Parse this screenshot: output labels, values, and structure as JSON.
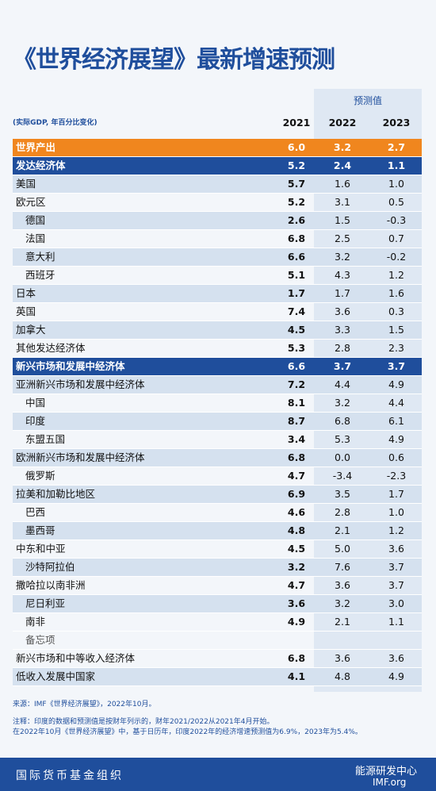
{
  "header": {
    "title": "《世界经济展望》最新增速预测"
  },
  "table": {
    "forecast_label": "预测值",
    "subtitle": "(实际GDP, 年百分比变化)",
    "columns": [
      "2021",
      "2022",
      "2023"
    ],
    "rows": [
      [
        "世界产出",
        "6.0",
        "3.2",
        "2.7"
      ],
      [
        "发达经济体",
        "5.2",
        "2.4",
        "1.1"
      ],
      [
        "美国",
        "5.7",
        "1.6",
        "1.0"
      ],
      [
        "欧元区",
        "5.2",
        "3.1",
        "0.5"
      ],
      [
        "德国",
        "2.6",
        "1.5",
        "-0.3"
      ],
      [
        "法国",
        "6.8",
        "2.5",
        "0.7"
      ],
      [
        "意大利",
        "6.6",
        "3.2",
        "-0.2"
      ],
      [
        "西班牙",
        "5.1",
        "4.3",
        "1.2"
      ],
      [
        "日本",
        "1.7",
        "1.7",
        "1.6"
      ],
      [
        "英国",
        "7.4",
        "3.6",
        "0.3"
      ],
      [
        "加拿大",
        "4.5",
        "3.3",
        "1.5"
      ],
      [
        "其他发达经济体",
        "5.3",
        "2.8",
        "2.3"
      ],
      [
        "新兴市场和发展中经济体",
        "6.6",
        "3.7",
        "3.7"
      ],
      [
        "亚洲新兴市场和发展中经济体",
        "7.2",
        "4.4",
        "4.9"
      ],
      [
        "中国",
        "8.1",
        "3.2",
        "4.4"
      ],
      [
        "印度",
        "8.7",
        "6.8",
        "6.1"
      ],
      [
        "东盟五国",
        "3.4",
        "5.3",
        "4.9"
      ],
      [
        "欧洲新兴市场和发展中经济体",
        "6.8",
        "0.0",
        "0.6"
      ],
      [
        "俄罗斯",
        "4.7",
        "-3.4",
        "-2.3"
      ],
      [
        "拉美和加勒比地区",
        "6.9",
        "3.5",
        "1.7"
      ],
      [
        "巴西",
        "4.6",
        "2.8",
        "1.0"
      ],
      [
        "墨西哥",
        "4.8",
        "2.1",
        "1.2"
      ],
      [
        "中东和中亚",
        "4.5",
        "5.0",
        "3.6"
      ],
      [
        "沙特阿拉伯",
        "3.2",
        "7.6",
        "3.7"
      ],
      [
        "撒哈拉以南非洲",
        "4.7",
        "3.6",
        "3.7"
      ],
      [
        "尼日利亚",
        "3.6",
        "3.2",
        "3.0"
      ],
      [
        "南非",
        "4.9",
        "2.1",
        "1.1"
      ],
      [
        "备忘项"
      ],
      [
        "新兴市场和中等收入经济体",
        "6.8",
        "3.6",
        "3.6"
      ],
      [
        "低收入发展中国家",
        "4.1",
        "4.8",
        "4.9"
      ]
    ]
  },
  "notes": {
    "source": "来源：IMF《世界经济展望》，2022年10月。",
    "note1": "注释：印度的数据和预测值是按财年列示的，财年2021/2022从2021年4月开始。",
    "note2": "在2022年10月《世界经济展望》中，基于日历年，印度2022年的经济增速预测值为6.9%，2023年为5.4%。"
  },
  "footer": {
    "org": "国际货币基金组织",
    "watermark": "能源研发中心",
    "site": "IMF.org"
  }
}
